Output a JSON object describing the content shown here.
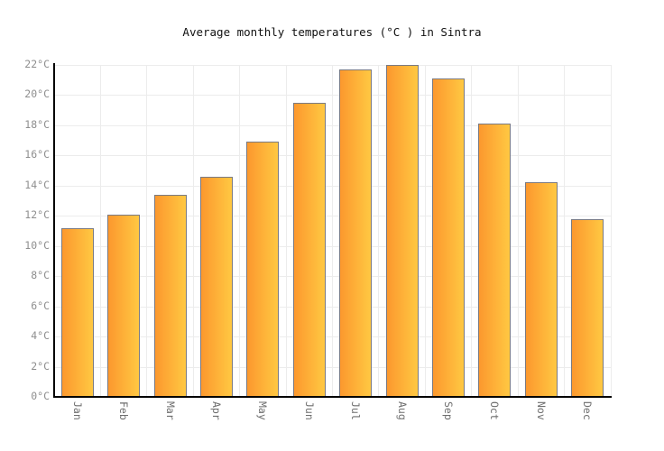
{
  "chart_data": {
    "type": "bar",
    "title": "Average monthly temperatures (°C ) in Sintra",
    "xlabel": "",
    "ylabel": "",
    "unit": "°C",
    "categories": [
      "Jan",
      "Feb",
      "Mar",
      "Apr",
      "May",
      "Jun",
      "Jul",
      "Aug",
      "Sep",
      "Oct",
      "Nov",
      "Dec"
    ],
    "values": [
      11.2,
      12.1,
      13.4,
      14.6,
      16.9,
      19.5,
      21.7,
      22.0,
      21.1,
      18.1,
      14.2,
      11.8
    ],
    "ylim": [
      0,
      22
    ],
    "ytick_step": 2,
    "ytick_labels": [
      "0°C",
      "2°C",
      "4°C",
      "6°C",
      "8°C",
      "10°C",
      "12°C",
      "14°C",
      "16°C",
      "18°C",
      "20°C",
      "22°C"
    ],
    "grid": true,
    "legend_position": "none",
    "colors": {
      "bar_gradient_left": "#fc982e",
      "bar_gradient_right": "#ffc842",
      "bar_border": "#7a7a82",
      "gridline": "#ececec",
      "axis": "#000000",
      "ytick_text": "#8e8e8e",
      "xtick_text": "#6e6e6e",
      "title_text": "#111111",
      "background": "#ffffff"
    }
  }
}
